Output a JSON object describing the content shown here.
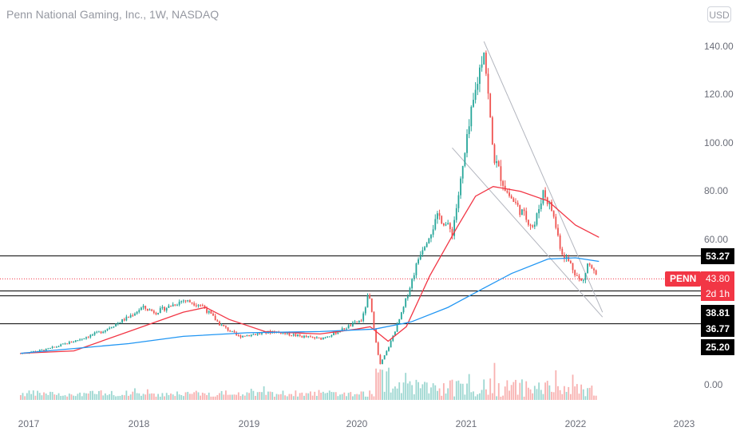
{
  "header": {
    "title": "Penn National Gaming, Inc., 1W, NASDAQ",
    "currency": "USD"
  },
  "colors": {
    "up": "#26a69a",
    "down": "#ef5350",
    "ma_short": "#f23645",
    "ma_long": "#2196f3",
    "level": "#000000",
    "trend": "#b2b5be",
    "price_tag": "#f23645"
  },
  "chart_data": {
    "type": "candlestick",
    "symbol": "PENN",
    "interval": "1W",
    "exchange": "NASDAQ",
    "y_ticks": [
      "140.00",
      "120.00",
      "100.00",
      "80.00",
      "60.00",
      "0.00"
    ],
    "x_ticks": [
      "2017",
      "2018",
      "2019",
      "2020",
      "2021",
      "2022",
      "2023"
    ],
    "ylim": [
      0,
      145
    ],
    "grid": false,
    "last_price": {
      "symbol": "PENN",
      "value": "43.80",
      "countdown": "2d 1h"
    },
    "levels": [
      {
        "value": 53.27,
        "label": "53.27"
      },
      {
        "value": 38.81,
        "label": "38.81"
      },
      {
        "value": 36.77,
        "label": "36.77"
      },
      {
        "value": 25.2,
        "label": "25.20"
      }
    ],
    "price_path": [
      [
        "2016-12-05",
        13.0
      ],
      [
        "2017-03-01",
        14.5
      ],
      [
        "2017-06-01",
        18.0
      ],
      [
        "2017-09-01",
        22.0
      ],
      [
        "2017-12-01",
        28.0
      ],
      [
        "2018-01-15",
        32.0
      ],
      [
        "2018-03-01",
        30.0
      ],
      [
        "2018-06-01",
        35.0
      ],
      [
        "2018-08-01",
        33.0
      ],
      [
        "2018-10-01",
        25.0
      ],
      [
        "2018-12-01",
        20.0
      ],
      [
        "2019-04-01",
        22.0
      ],
      [
        "2019-07-01",
        20.0
      ],
      [
        "2019-09-01",
        19.0
      ],
      [
        "2019-11-01",
        22.0
      ],
      [
        "2020-01-20",
        27.0
      ],
      [
        "2020-02-10",
        38.0
      ],
      [
        "2020-03-18",
        8.0
      ],
      [
        "2020-04-15",
        15.0
      ],
      [
        "2020-06-01",
        30.0
      ],
      [
        "2020-08-01",
        55.0
      ],
      [
        "2020-10-01",
        70.0
      ],
      [
        "2020-11-15",
        63.0
      ],
      [
        "2020-12-15",
        85.0
      ],
      [
        "2021-01-15",
        110.0
      ],
      [
        "2021-03-01",
        140.0
      ],
      [
        "2021-04-01",
        95.0
      ],
      [
        "2021-05-15",
        80.0
      ],
      [
        "2021-07-01",
        72.0
      ],
      [
        "2021-08-15",
        65.0
      ],
      [
        "2021-09-15",
        80.0
      ],
      [
        "2021-10-15",
        72.0
      ],
      [
        "2021-11-15",
        55.0
      ],
      [
        "2021-12-15",
        50.0
      ],
      [
        "2022-01-10",
        44.0
      ],
      [
        "2022-01-25",
        42.0
      ],
      [
        "2022-02-10",
        50.0
      ],
      [
        "2022-02-25",
        48.0
      ],
      [
        "2022-03-15",
        43.8
      ]
    ],
    "ma_short_path": [
      [
        "2016-12-05",
        13.0
      ],
      [
        "2017-06-01",
        14.0
      ],
      [
        "2017-12-01",
        22.0
      ],
      [
        "2018-06-01",
        30.0
      ],
      [
        "2018-08-15",
        32.0
      ],
      [
        "2018-11-01",
        27.0
      ],
      [
        "2019-03-01",
        22.0
      ],
      [
        "2019-09-01",
        21.0
      ],
      [
        "2020-01-01",
        23.0
      ],
      [
        "2020-02-15",
        24.0
      ],
      [
        "2020-04-15",
        18.0
      ],
      [
        "2020-06-15",
        24.0
      ],
      [
        "2020-09-01",
        45.0
      ],
      [
        "2020-12-01",
        65.0
      ],
      [
        "2021-02-01",
        78.0
      ],
      [
        "2021-04-01",
        82.0
      ],
      [
        "2021-07-01",
        80.0
      ],
      [
        "2021-10-01",
        76.0
      ],
      [
        "2022-01-01",
        66.0
      ],
      [
        "2022-03-20",
        61.0
      ]
    ],
    "ma_long_path": [
      [
        "2016-12-05",
        13.0
      ],
      [
        "2017-12-01",
        17.0
      ],
      [
        "2018-06-01",
        20.0
      ],
      [
        "2019-01-01",
        21.5
      ],
      [
        "2019-09-01",
        22.0
      ],
      [
        "2020-03-01",
        23.0
      ],
      [
        "2020-07-01",
        26.0
      ],
      [
        "2020-11-01",
        32.0
      ],
      [
        "2021-03-01",
        40.0
      ],
      [
        "2021-06-01",
        46.0
      ],
      [
        "2021-10-01",
        52.0
      ],
      [
        "2022-01-01",
        52.5
      ],
      [
        "2022-03-20",
        51.0
      ]
    ],
    "trendlines": [
      {
        "from": [
          "2021-03-01",
          142.0
        ],
        "to": [
          "2022-04-01",
          30.0
        ]
      },
      {
        "from": [
          "2020-11-15",
          98.0
        ],
        "to": [
          "2022-04-01",
          28.0
        ]
      }
    ]
  }
}
